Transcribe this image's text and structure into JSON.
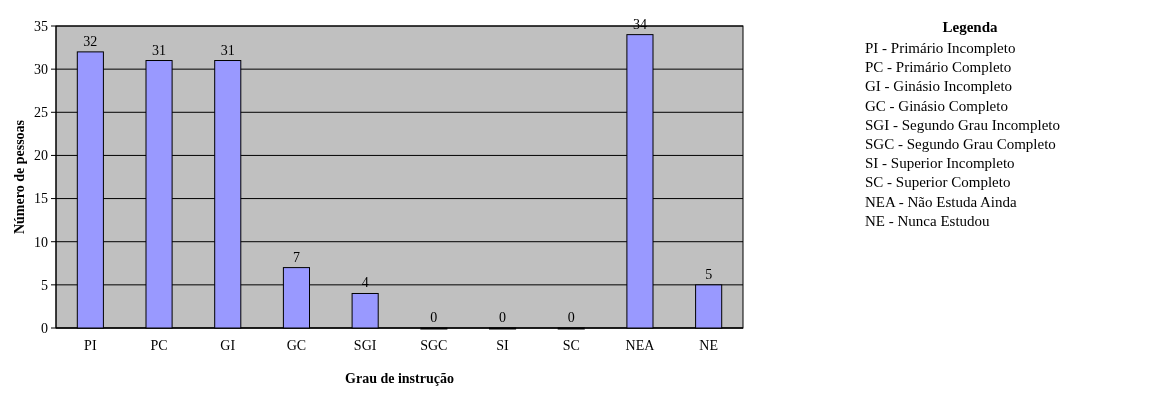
{
  "chart_data": {
    "type": "bar",
    "xlabel": "Grau de instrução",
    "ylabel": "Número de pessoas",
    "categories": [
      "PI",
      "PC",
      "GI",
      "GC",
      "SGI",
      "SGC",
      "SI",
      "SC",
      "NEA",
      "NE"
    ],
    "values": [
      32,
      31,
      31,
      7,
      4,
      0,
      0,
      0,
      34,
      5
    ],
    "color": "#9999ff",
    "data_labels": true,
    "ylim": [
      0,
      35
    ],
    "yticks": [
      0,
      5,
      10,
      15,
      20,
      25,
      30,
      35
    ],
    "grid": "y",
    "legend_title": "Legenda",
    "annotations": [
      "PI - Primário Incompleto",
      "PC - Primário Completo",
      "GI - Ginásio Incompleto",
      "GC - Ginásio Completo",
      "SGI - Segundo Grau Incompleto",
      "SGC - Segundo Grau Completo",
      "SI - Superior Incompleto",
      "SC - Superior Completo",
      "NEA - Não Estuda Ainda",
      "NE - Nunca Estudou"
    ]
  }
}
